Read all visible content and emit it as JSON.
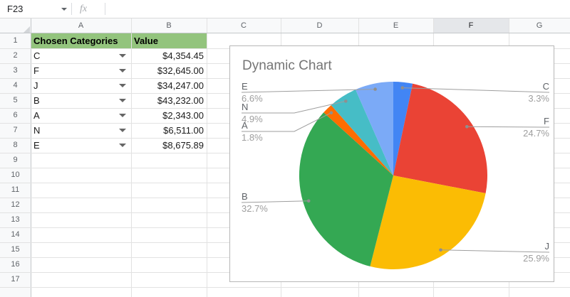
{
  "toolbar": {
    "name_box": "F23",
    "fx_label": "fx"
  },
  "sheet": {
    "column_headers": [
      "A",
      "B",
      "C",
      "D",
      "E",
      "F",
      "G"
    ],
    "highlighted_column": "F",
    "row_numbers": [
      "1",
      "2",
      "3",
      "4",
      "5",
      "6",
      "7",
      "8",
      "9",
      "10",
      "11",
      "12",
      "13",
      "14",
      "15",
      "16",
      "17"
    ],
    "header_row": {
      "category": "Chosen Categories",
      "value": "Value"
    },
    "header_bg_color": "#93c47d",
    "data_rows": [
      {
        "row": 2,
        "category": "C",
        "value": "$4,354.45"
      },
      {
        "row": 3,
        "category": "F",
        "value": "$32,645.00"
      },
      {
        "row": 4,
        "category": "J",
        "value": "$34,247.00"
      },
      {
        "row": 5,
        "category": "B",
        "value": "$43,232.00"
      },
      {
        "row": 6,
        "category": "A",
        "value": "$2,343.00"
      },
      {
        "row": 7,
        "category": "N",
        "value": "$6,511.00"
      },
      {
        "row": 8,
        "category": "E",
        "value": "$8,675.89"
      }
    ]
  },
  "chart_data": {
    "type": "pie",
    "title": "Dynamic Chart",
    "categories": [
      "C",
      "F",
      "J",
      "B",
      "A",
      "N",
      "E"
    ],
    "values": [
      4354.45,
      32645.0,
      34247.0,
      43232.0,
      2343.0,
      6511.0,
      8675.89
    ],
    "percent_labels": [
      "3.3%",
      "24.7%",
      "25.9%",
      "32.7%",
      "1.8%",
      "4.9%",
      "6.6%"
    ],
    "colors": [
      "#4285F4",
      "#EA4335",
      "#FBBC04",
      "#34A853",
      "#FF6D01",
      "#46BDC6",
      "#7BAAF7"
    ],
    "start_angle": "12-oclock",
    "direction": "clockwise",
    "legend_position": "callout-labels"
  }
}
